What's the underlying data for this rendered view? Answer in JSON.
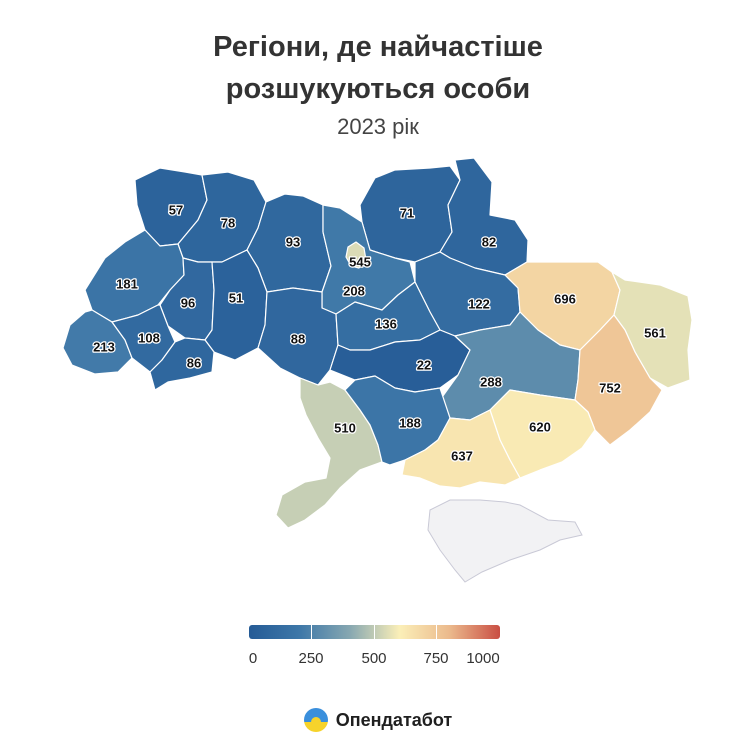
{
  "title": "Регіони, де найчастіше\nрозшукуються особи",
  "subtitle": "2023 рік",
  "regions": [
    {
      "id": "volyn",
      "value": 57
    },
    {
      "id": "rivne",
      "value": 78
    },
    {
      "id": "zhytomyr",
      "value": 93
    },
    {
      "id": "chernihiv",
      "value": 71
    },
    {
      "id": "sumy",
      "value": 82
    },
    {
      "id": "lviv",
      "value": 181
    },
    {
      "id": "ternopil",
      "value": 96
    },
    {
      "id": "khmelnytskyi",
      "value": 51
    },
    {
      "id": "kyiv-city",
      "value": 545
    },
    {
      "id": "kyiv-oblast",
      "value": 208
    },
    {
      "id": "poltava",
      "value": 122
    },
    {
      "id": "kharkiv",
      "value": 696
    },
    {
      "id": "luhansk",
      "value": 561
    },
    {
      "id": "zakarpattia",
      "value": 213
    },
    {
      "id": "ivano-frankivsk",
      "value": 108
    },
    {
      "id": "chernivtsi",
      "value": 86
    },
    {
      "id": "vinnytsia",
      "value": 88
    },
    {
      "id": "cherkasy",
      "value": 136
    },
    {
      "id": "kirovohrad",
      "value": 22
    },
    {
      "id": "dnipropetrovsk",
      "value": 288
    },
    {
      "id": "donetsk",
      "value": 752
    },
    {
      "id": "odesa",
      "value": 510
    },
    {
      "id": "mykolaiv",
      "value": 188
    },
    {
      "id": "zaporizhzhia",
      "value": 620
    },
    {
      "id": "kherson",
      "value": 637
    },
    {
      "id": "crimea",
      "value": null
    }
  ],
  "legend": {
    "ticks": [
      "0",
      "250",
      "500",
      "750",
      "1000"
    ],
    "min": 0,
    "max": 1000,
    "colors": [
      "#255b96",
      "#3d77a8",
      "#86a7b1",
      "#fbefb8",
      "#ebb98c",
      "#c94e43"
    ]
  },
  "colors": {
    "occupied": "#f2f2f4",
    "title": "#333333"
  },
  "brand": {
    "name": "Опендатабот",
    "icon": "sun-over-field-logo"
  }
}
